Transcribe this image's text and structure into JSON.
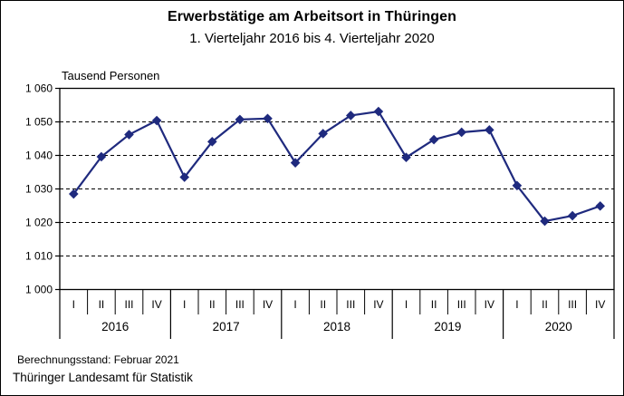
{
  "header": {
    "title": "Erwerbstätige am Arbeitsort in Thüringen",
    "subtitle": "1. Vierteljahr 2016 bis 4. Vierteljahr 2020"
  },
  "footer": {
    "berechnungsstand": "Berechnungsstand: Februar 2021",
    "source": "Thüringer Landesamt für Statistik"
  },
  "colors": {
    "series": "#1F2A7E",
    "axis": "#000000",
    "grid": "#000000",
    "background": "#FFFFFF"
  },
  "chart_data": {
    "type": "line",
    "title": "Erwerbstätige am Arbeitsort in Thüringen",
    "subtitle": "1. Vierteljahr 2016 bis 4. Vierteljahr 2020",
    "ylabel": "Tausend Personen",
    "xlabel": "",
    "ylim": [
      1000,
      1060
    ],
    "ytick_step": 10,
    "ytick_labels": [
      "1 000",
      "1 010",
      "1 020",
      "1 030",
      "1 040",
      "1 050",
      "1 060"
    ],
    "grid": "horizontal-dashed",
    "legend_position": "none",
    "marker": "diamond",
    "quarter_labels": [
      "I",
      "II",
      "III",
      "IV"
    ],
    "x_groups": [
      {
        "year": "2016",
        "quarters": [
          "I",
          "II",
          "III",
          "IV"
        ]
      },
      {
        "year": "2017",
        "quarters": [
          "I",
          "II",
          "III",
          "IV"
        ]
      },
      {
        "year": "2018",
        "quarters": [
          "I",
          "II",
          "III",
          "IV"
        ]
      },
      {
        "year": "2019",
        "quarters": [
          "I",
          "II",
          "III",
          "IV"
        ]
      },
      {
        "year": "2020",
        "quarters": [
          "I",
          "II",
          "III",
          "IV"
        ]
      }
    ],
    "series": [
      {
        "name": "Erwerbstätige am Arbeitsort (Tausend Personen)",
        "values": [
          1028.5,
          1039.6,
          1046.2,
          1050.4,
          1033.5,
          1044.1,
          1050.7,
          1051.0,
          1037.8,
          1046.5,
          1051.9,
          1053.1,
          1039.4,
          1044.7,
          1046.9,
          1047.6,
          1031.0,
          1020.4,
          1022.0,
          1024.9
        ]
      }
    ]
  }
}
